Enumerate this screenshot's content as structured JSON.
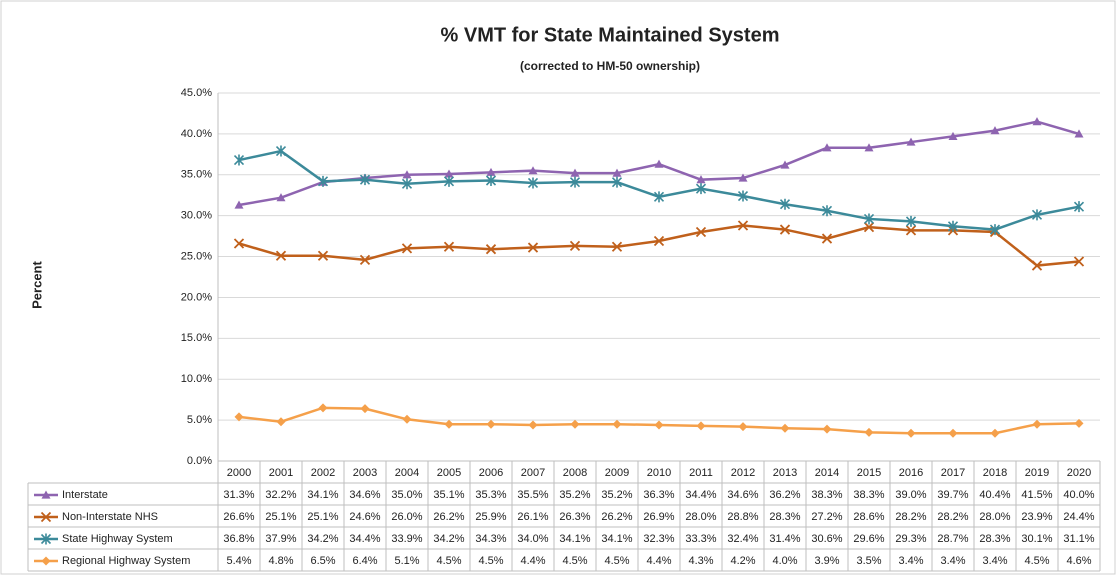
{
  "chart_data": {
    "type": "line",
    "title": "% VMT for State Maintained System",
    "subtitle": "(corrected to HM-50 ownership)",
    "y_label": "Percent",
    "categories": [
      "2000",
      "2001",
      "2002",
      "2003",
      "2004",
      "2005",
      "2006",
      "2007",
      "2008",
      "2009",
      "2010",
      "2011",
      "2012",
      "2013",
      "2014",
      "2015",
      "2016",
      "2017",
      "2018",
      "2019",
      "2020"
    ],
    "ylim": [
      0,
      45
    ],
    "yticks": [
      {
        "value": 0,
        "label": "0.0%"
      },
      {
        "value": 5,
        "label": "5.0%"
      },
      {
        "value": 10,
        "label": "10.0%"
      },
      {
        "value": 15,
        "label": "15.0%"
      },
      {
        "value": 20,
        "label": "20.0%"
      },
      {
        "value": 25,
        "label": "25.0%"
      },
      {
        "value": 30,
        "label": "30.0%"
      },
      {
        "value": 35,
        "label": "35.0%"
      },
      {
        "value": 40,
        "label": "40.0%"
      },
      {
        "value": 45,
        "label": "45.0%"
      }
    ],
    "grid": true,
    "series": [
      {
        "name": "Interstate",
        "color": "#8e64b0",
        "marker": "triangle",
        "values": [
          31.3,
          32.2,
          34.1,
          34.6,
          35.0,
          35.1,
          35.3,
          35.5,
          35.2,
          35.2,
          36.3,
          34.4,
          34.6,
          36.2,
          38.3,
          38.3,
          39.0,
          39.7,
          40.4,
          41.5,
          40.0
        ],
        "value_labels": [
          "31.3%",
          "32.2%",
          "34.1%",
          "34.6%",
          "35.0%",
          "35.1%",
          "35.3%",
          "35.5%",
          "35.2%",
          "35.2%",
          "36.3%",
          "34.4%",
          "34.6%",
          "36.2%",
          "38.3%",
          "38.3%",
          "39.0%",
          "39.7%",
          "40.4%",
          "41.5%",
          "40.0%"
        ]
      },
      {
        "name": "Non-Interstate NHS",
        "color": "#c0601b",
        "marker": "x",
        "values": [
          26.6,
          25.1,
          25.1,
          24.6,
          26.0,
          26.2,
          25.9,
          26.1,
          26.3,
          26.2,
          26.9,
          28.0,
          28.8,
          28.3,
          27.2,
          28.6,
          28.2,
          28.2,
          28.0,
          23.9,
          24.4
        ],
        "value_labels": [
          "26.6%",
          "25.1%",
          "25.1%",
          "24.6%",
          "26.0%",
          "26.2%",
          "25.9%",
          "26.1%",
          "26.3%",
          "26.2%",
          "26.9%",
          "28.0%",
          "28.8%",
          "28.3%",
          "27.2%",
          "28.6%",
          "28.2%",
          "28.2%",
          "28.0%",
          "23.9%",
          "24.4%"
        ]
      },
      {
        "name": "State Highway System",
        "color": "#3c8a9a",
        "marker": "asterisk",
        "values": [
          36.8,
          37.9,
          34.2,
          34.4,
          33.9,
          34.2,
          34.3,
          34.0,
          34.1,
          34.1,
          32.3,
          33.3,
          32.4,
          31.4,
          30.6,
          29.6,
          29.3,
          28.7,
          28.3,
          30.1,
          31.1
        ],
        "value_labels": [
          "36.8%",
          "37.9%",
          "34.2%",
          "34.4%",
          "33.9%",
          "34.2%",
          "34.3%",
          "34.0%",
          "34.1%",
          "34.1%",
          "32.3%",
          "33.3%",
          "32.4%",
          "31.4%",
          "30.6%",
          "29.6%",
          "29.3%",
          "28.7%",
          "28.3%",
          "30.1%",
          "31.1%"
        ]
      },
      {
        "name": "Regional Highway System",
        "color": "#f5a04a",
        "marker": "diamond",
        "values": [
          5.4,
          4.8,
          6.5,
          6.4,
          5.1,
          4.5,
          4.5,
          4.4,
          4.5,
          4.5,
          4.4,
          4.3,
          4.2,
          4.0,
          3.9,
          3.5,
          3.4,
          3.4,
          3.4,
          4.5,
          4.6
        ],
        "value_labels": [
          "5.4%",
          "4.8%",
          "6.5%",
          "6.4%",
          "5.1%",
          "4.5%",
          "4.5%",
          "4.4%",
          "4.5%",
          "4.5%",
          "4.4%",
          "4.3%",
          "4.2%",
          "4.0%",
          "3.9%",
          "3.5%",
          "3.4%",
          "3.4%",
          "3.4%",
          "4.5%",
          "4.6%"
        ]
      }
    ]
  }
}
